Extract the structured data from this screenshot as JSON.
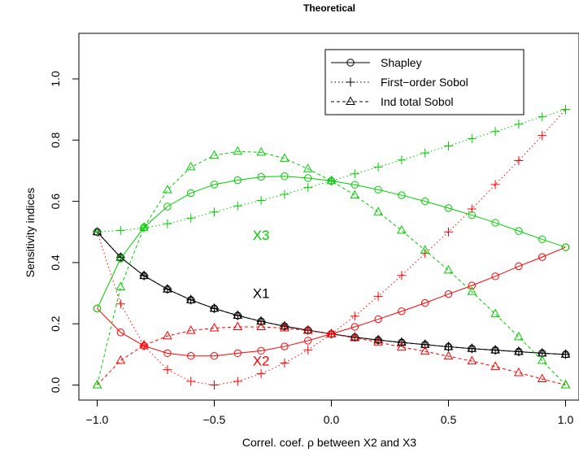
{
  "chart_data": {
    "type": "line",
    "title": "Theoretical",
    "xlabel": "Correl. coef. ρ between X2 and X3",
    "ylabel": "Sensitivity indices",
    "xlim": [
      -1.0,
      1.0
    ],
    "ylim": [
      0.0,
      1.0
    ],
    "x_ticks": [
      -1.0,
      -0.5,
      0.0,
      0.5,
      1.0
    ],
    "x_tick_labels": [
      "−1.0",
      "−0.5",
      "0.0",
      "0.5",
      "1.0"
    ],
    "y_ticks": [
      0.0,
      0.2,
      0.4,
      0.6,
      0.8,
      1.0
    ],
    "y_tick_labels": [
      "0.0",
      "0.2",
      "0.4",
      "0.6",
      "0.8",
      "1.0"
    ],
    "grid": false,
    "legend_position": "top-right",
    "legend": [
      {
        "label": "Shapley",
        "marker": "circle",
        "line": "solid"
      },
      {
        "label": "First−order Sobol",
        "marker": "plus",
        "line": "dotted"
      },
      {
        "label": "Ind total Sobol",
        "marker": "triangle",
        "line": "dashed"
      }
    ],
    "colors": {
      "X1": "#000000",
      "X2": "#ff0000",
      "X3": "#00cd00"
    },
    "annotations": [
      {
        "text": "X3",
        "x": -0.3,
        "y": 0.49,
        "color": "#00cd00"
      },
      {
        "text": "X1",
        "x": -0.3,
        "y": 0.3,
        "color": "#000000"
      },
      {
        "text": "X2",
        "x": -0.3,
        "y": 0.08,
        "color": "#ff0000"
      }
    ],
    "x": [
      -1.0,
      -0.9,
      -0.8,
      -0.7,
      -0.6,
      -0.5,
      -0.4,
      -0.3,
      -0.2,
      -0.1,
      0.0,
      0.1,
      0.2,
      0.3,
      0.4,
      0.5,
      0.6,
      0.7,
      0.8,
      0.9,
      1.0
    ],
    "series": [
      {
        "name": "Shapley",
        "variable": "X1",
        "values": [
          0.5,
          0.417,
          0.357,
          0.313,
          0.278,
          0.25,
          0.227,
          0.208,
          0.192,
          0.179,
          0.167,
          0.156,
          0.147,
          0.139,
          0.132,
          0.125,
          0.119,
          0.114,
          0.109,
          0.104,
          0.1
        ]
      },
      {
        "name": "First−order Sobol",
        "variable": "X1",
        "values": [
          0.5,
          0.417,
          0.357,
          0.313,
          0.278,
          0.25,
          0.227,
          0.208,
          0.192,
          0.179,
          0.167,
          0.156,
          0.147,
          0.139,
          0.132,
          0.125,
          0.119,
          0.114,
          0.109,
          0.104,
          0.1
        ]
      },
      {
        "name": "Ind total Sobol",
        "variable": "X1",
        "values": [
          0.5,
          0.417,
          0.357,
          0.313,
          0.278,
          0.25,
          0.227,
          0.208,
          0.192,
          0.179,
          0.167,
          0.156,
          0.147,
          0.139,
          0.132,
          0.125,
          0.119,
          0.114,
          0.109,
          0.104,
          0.1
        ]
      },
      {
        "name": "Shapley",
        "variable": "X2",
        "values": [
          0.25,
          0.172,
          0.128,
          0.104,
          0.095,
          0.095,
          0.104,
          0.112,
          0.126,
          0.145,
          0.167,
          0.19,
          0.215,
          0.241,
          0.268,
          0.297,
          0.325,
          0.355,
          0.388,
          0.418,
          0.45
        ]
      },
      {
        "name": "First−order Sobol",
        "variable": "X2",
        "values": [
          0.5,
          0.265,
          0.128,
          0.05,
          0.012,
          0.0,
          0.012,
          0.037,
          0.072,
          0.115,
          0.167,
          0.225,
          0.29,
          0.358,
          0.43,
          0.5,
          0.575,
          0.655,
          0.733,
          0.815,
          0.9
        ]
      },
      {
        "name": "Ind total Sobol",
        "variable": "X2",
        "values": [
          0.0,
          0.08,
          0.13,
          0.16,
          0.178,
          0.186,
          0.19,
          0.19,
          0.186,
          0.178,
          0.167,
          0.154,
          0.14,
          0.124,
          0.11,
          0.094,
          0.078,
          0.06,
          0.04,
          0.02,
          0.0
        ]
      },
      {
        "name": "Shapley",
        "variable": "X3",
        "values": [
          0.25,
          0.413,
          0.515,
          0.583,
          0.627,
          0.655,
          0.669,
          0.68,
          0.682,
          0.676,
          0.667,
          0.654,
          0.638,
          0.62,
          0.6,
          0.578,
          0.555,
          0.53,
          0.503,
          0.476,
          0.45
        ]
      },
      {
        "name": "First−order Sobol",
        "variable": "X3",
        "values": [
          0.5,
          0.505,
          0.513,
          0.527,
          0.545,
          0.565,
          0.585,
          0.603,
          0.623,
          0.645,
          0.667,
          0.69,
          0.712,
          0.735,
          0.758,
          0.781,
          0.805,
          0.828,
          0.852,
          0.876,
          0.9
        ]
      },
      {
        "name": "Ind total Sobol",
        "variable": "X3",
        "values": [
          0.0,
          0.32,
          0.515,
          0.637,
          0.712,
          0.75,
          0.763,
          0.76,
          0.74,
          0.706,
          0.667,
          0.62,
          0.565,
          0.505,
          0.44,
          0.375,
          0.305,
          0.232,
          0.157,
          0.08,
          0.0
        ]
      }
    ]
  }
}
